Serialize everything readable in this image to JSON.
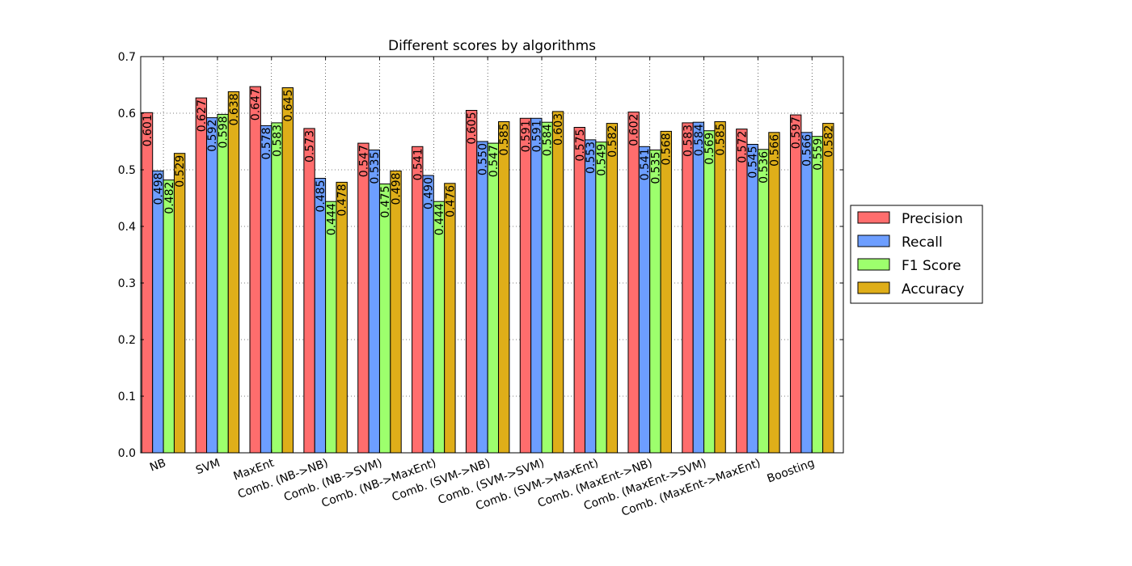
{
  "chart_data": {
    "type": "bar",
    "title": "Different scores by algorithms",
    "xlabel": "",
    "ylabel": "",
    "ylim": [
      0,
      0.7
    ],
    "yticks": [
      "0.0",
      "0.1",
      "0.2",
      "0.3",
      "0.4",
      "0.5",
      "0.6",
      "0.7"
    ],
    "grid": true,
    "legend_position": "right",
    "categories": [
      "NB",
      "SVM",
      "MaxEnt",
      "Comb. (NB->NB)",
      "Comb. (NB->SVM)",
      "Comb. (NB->MaxEnt)",
      "Comb. (SVM->NB)",
      "Comb. (SVM->SVM)",
      "Comb. (SVM->MaxEnt)",
      "Comb. (MaxEnt->NB)",
      "Comb. (MaxEnt->SVM)",
      "Comb. (MaxEnt->MaxEnt)",
      "Boosting"
    ],
    "series": [
      {
        "name": "Precision",
        "color": "#ff6d6d",
        "values": [
          0.601,
          0.627,
          0.647,
          0.573,
          0.547,
          0.541,
          0.605,
          0.591,
          0.575,
          0.602,
          0.583,
          0.572,
          0.597
        ],
        "labels": [
          "0.601",
          "0.627",
          "0.647",
          "0.573",
          "0.547",
          "0.541",
          "0.605",
          "0.591",
          "0.575",
          "0.602",
          "0.583",
          "0.572",
          "0.597"
        ]
      },
      {
        "name": "Recall",
        "color": "#6d9eff",
        "values": [
          0.498,
          0.592,
          0.578,
          0.485,
          0.535,
          0.49,
          0.55,
          0.591,
          0.553,
          0.541,
          0.584,
          0.545,
          0.566
        ],
        "labels": [
          "0.498",
          "0.592",
          "0.578",
          "0.485",
          "0.535",
          "0.490",
          "0.550",
          "0.591",
          "0.553",
          "0.541",
          "0.584",
          "0.545",
          "0.566"
        ]
      },
      {
        "name": "F1 Score",
        "color": "#9dff6d",
        "values": [
          0.482,
          0.598,
          0.583,
          0.444,
          0.475,
          0.444,
          0.547,
          0.584,
          0.549,
          0.535,
          0.569,
          0.536,
          0.559
        ],
        "labels": [
          "0.482",
          "0.598",
          "0.583",
          "0.444",
          "0.475",
          "0.444",
          "0.547",
          "0.584",
          "0.549",
          "0.535",
          "0.569",
          "0.536",
          "0.559"
        ]
      },
      {
        "name": "Accuracy",
        "color": "#dfae19",
        "values": [
          0.529,
          0.638,
          0.645,
          0.478,
          0.498,
          0.476,
          0.585,
          0.603,
          0.582,
          0.568,
          0.585,
          0.566,
          0.582
        ],
        "labels": [
          "0.529",
          "0.638",
          "0.645",
          "0.478",
          "0.498",
          "0.476",
          "0.585",
          "0.603",
          "0.582",
          "0.568",
          "0.585",
          "0.566",
          "0.582"
        ]
      }
    ]
  }
}
